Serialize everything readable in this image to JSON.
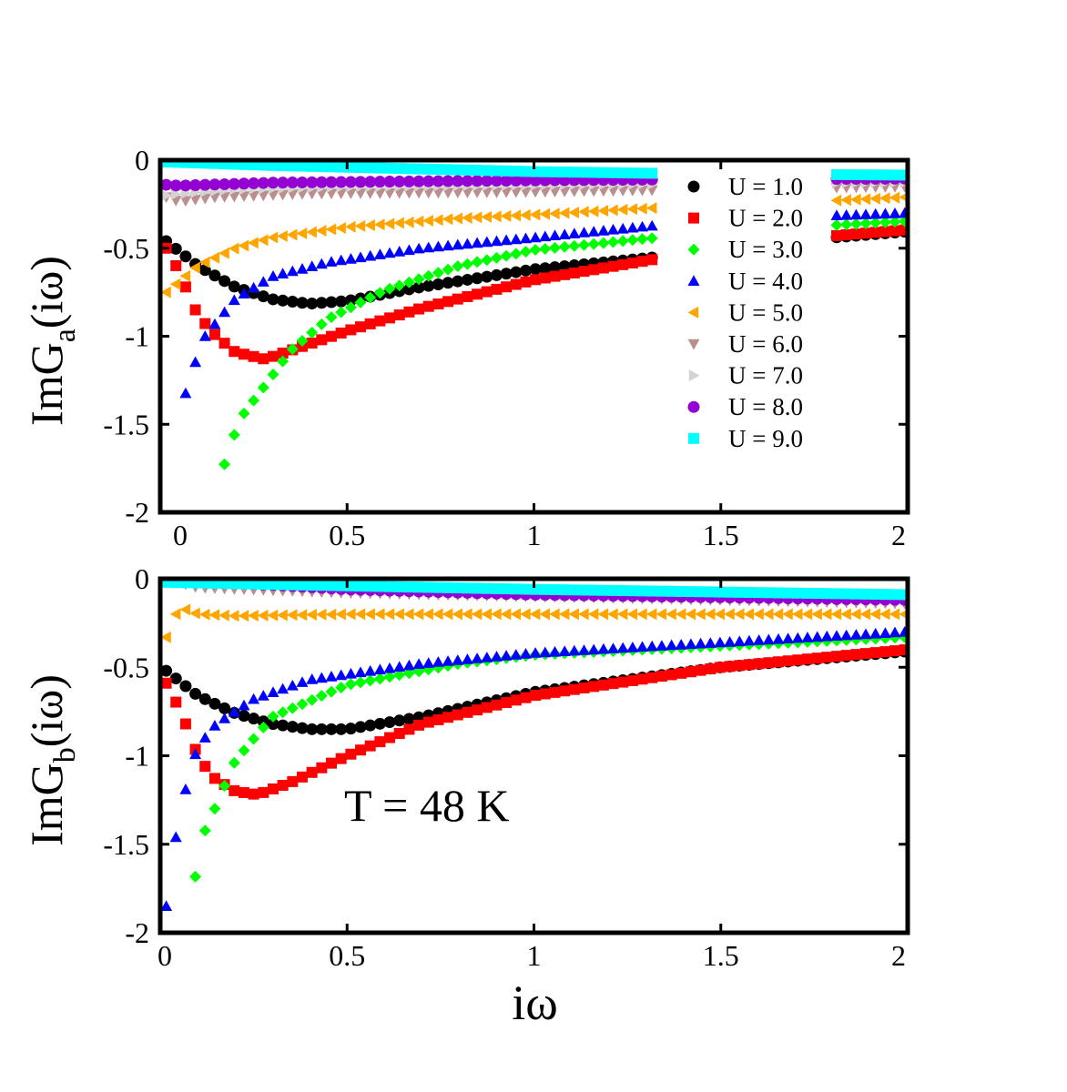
{
  "chart_data": [
    {
      "type": "scatter",
      "ylabel_main": "ImG",
      "ylabel_sub": "a",
      "ylabel_tail": "(iω)",
      "xlim": [
        0,
        2
      ],
      "ylim": [
        -2,
        0
      ],
      "xticks": [
        0,
        0.5,
        1,
        1.5,
        2
      ],
      "xticklabels": [
        "0",
        "0.5",
        "1",
        "1.5",
        "2"
      ],
      "yticks": [
        0,
        -0.5,
        -1,
        -1.5,
        -2
      ],
      "yticklabels": [
        "0",
        "-0.5",
        "-1",
        "-1.5",
        "-2"
      ],
      "legend_position": "top-right",
      "legend_title_prefix": "U = ",
      "series": [
        {
          "name": "U = 1.0",
          "u": "1.0",
          "color": "#000000",
          "marker": "circle",
          "anchors": [
            [
              0.016,
              -0.46
            ],
            [
              0.1,
              -0.6
            ],
            [
              0.2,
              -0.72
            ],
            [
              0.3,
              -0.79
            ],
            [
              0.4,
              -0.815
            ],
            [
              0.5,
              -0.8
            ],
            [
              0.7,
              -0.72
            ],
            [
              1.0,
              -0.62
            ],
            [
              1.33,
              -0.55
            ],
            [
              1.8,
              -0.44
            ],
            [
              2.0,
              -0.405
            ]
          ]
        },
        {
          "name": "U = 2.0",
          "u": "2.0",
          "color": "#ff0000",
          "marker": "square",
          "anchors": [
            [
              0.016,
              -0.5
            ],
            [
              0.05,
              -0.63
            ],
            [
              0.1,
              -0.88
            ],
            [
              0.15,
              -1.0
            ],
            [
              0.2,
              -1.09
            ],
            [
              0.28,
              -1.13
            ],
            [
              0.35,
              -1.08
            ],
            [
              0.5,
              -0.97
            ],
            [
              0.7,
              -0.84
            ],
            [
              1.0,
              -0.68
            ],
            [
              1.33,
              -0.56
            ],
            [
              1.8,
              -0.43
            ],
            [
              2.0,
              -0.395
            ]
          ]
        },
        {
          "name": "U = 3.0",
          "u": "3.0",
          "color": "#00ff00",
          "marker": "diamond",
          "anchors": [
            [
              0.15,
              -1.94
            ],
            [
              0.18,
              -1.65
            ],
            [
              0.22,
              -1.45
            ],
            [
              0.28,
              -1.28
            ],
            [
              0.35,
              -1.08
            ],
            [
              0.45,
              -0.9
            ],
            [
              0.6,
              -0.74
            ],
            [
              0.8,
              -0.6
            ],
            [
              1.0,
              -0.51
            ],
            [
              1.33,
              -0.44
            ],
            [
              1.8,
              -0.37
            ],
            [
              2.0,
              -0.345
            ]
          ]
        },
        {
          "name": "U = 4.0",
          "u": "4.0",
          "color": "#0000ff",
          "marker": "triangle-up",
          "anchors": [
            [
              0.05,
              -1.45
            ],
            [
              0.09,
              -1.17
            ],
            [
              0.12,
              -1.0
            ],
            [
              0.2,
              -0.79
            ],
            [
              0.3,
              -0.66
            ],
            [
              0.45,
              -0.58
            ],
            [
              0.7,
              -0.5
            ],
            [
              1.0,
              -0.44
            ],
            [
              1.33,
              -0.37
            ],
            [
              1.8,
              -0.315
            ],
            [
              2.0,
              -0.3
            ]
          ]
        },
        {
          "name": "U = 5.0",
          "u": "5.0",
          "color": "#ffa500",
          "marker": "triangle-left",
          "anchors": [
            [
              0.016,
              -0.75
            ],
            [
              0.05,
              -0.69
            ],
            [
              0.1,
              -0.6
            ],
            [
              0.2,
              -0.5
            ],
            [
              0.3,
              -0.44
            ],
            [
              0.5,
              -0.38
            ],
            [
              0.8,
              -0.33
            ],
            [
              1.0,
              -0.31
            ],
            [
              1.33,
              -0.27
            ],
            [
              1.8,
              -0.23
            ],
            [
              2.0,
              -0.21
            ]
          ]
        },
        {
          "name": "U = 6.0",
          "u": "6.0",
          "color": "#bc8f8f",
          "marker": "triangle-down",
          "anchors": [
            [
              0.016,
              -0.21
            ],
            [
              0.05,
              -0.235
            ],
            [
              0.15,
              -0.21
            ],
            [
              0.4,
              -0.19
            ],
            [
              1.0,
              -0.18
            ],
            [
              1.33,
              -0.17
            ],
            [
              2.0,
              -0.15
            ]
          ]
        },
        {
          "name": "U = 7.0",
          "u": "7.0",
          "color": "#d3d3d3",
          "marker": "triangle-right",
          "anchors": [
            [
              0.016,
              -0.2
            ],
            [
              0.05,
              -0.19
            ],
            [
              0.2,
              -0.165
            ],
            [
              0.5,
              -0.15
            ],
            [
              1.0,
              -0.14
            ],
            [
              1.33,
              -0.135
            ],
            [
              2.0,
              -0.125
            ]
          ]
        },
        {
          "name": "U = 8.0",
          "u": "8.0",
          "color": "#9400d3",
          "marker": "circle",
          "anchors": [
            [
              0.016,
              -0.14
            ],
            [
              0.05,
              -0.145
            ],
            [
              0.3,
              -0.128
            ],
            [
              0.7,
              -0.12
            ],
            [
              1.0,
              -0.115
            ],
            [
              1.33,
              -0.11
            ],
            [
              2.0,
              -0.105
            ]
          ]
        },
        {
          "name": "U = 9.0",
          "u": "9.0",
          "color": "#00ffff",
          "marker": "square",
          "anchors": [
            [
              0.016,
              -0.01
            ],
            [
              0.3,
              -0.03
            ],
            [
              0.7,
              -0.05
            ],
            [
              1.0,
              -0.065
            ],
            [
              1.33,
              -0.075
            ],
            [
              2.0,
              -0.085
            ]
          ]
        }
      ]
    },
    {
      "type": "scatter",
      "ylabel_main": "ImG",
      "ylabel_sub": "b",
      "ylabel_tail": "(iω)",
      "xlabel": "iω",
      "annotation": "T = 48 K",
      "xlim": [
        0,
        2
      ],
      "ylim": [
        -2,
        0
      ],
      "xticks": [
        0,
        0.5,
        1,
        1.5,
        2
      ],
      "xticklabels": [
        "0",
        "0.5",
        "1",
        "1.5",
        "2"
      ],
      "yticks": [
        0,
        -0.5,
        -1,
        -1.5,
        -2
      ],
      "yticklabels": [
        "0",
        "-0.5",
        "-1",
        "-1.5",
        "-2"
      ],
      "series": [
        {
          "name": "U = 1.0",
          "color": "#000000",
          "marker": "circle",
          "anchors": [
            [
              0.016,
              -0.52
            ],
            [
              0.1,
              -0.66
            ],
            [
              0.2,
              -0.76
            ],
            [
              0.3,
              -0.82
            ],
            [
              0.4,
              -0.85
            ],
            [
              0.5,
              -0.85
            ],
            [
              0.7,
              -0.78
            ],
            [
              1.0,
              -0.64
            ],
            [
              1.5,
              -0.5
            ],
            [
              2.0,
              -0.41
            ]
          ]
        },
        {
          "name": "U = 2.0",
          "color": "#ff0000",
          "marker": "square",
          "anchors": [
            [
              0.016,
              -0.59
            ],
            [
              0.05,
              -0.73
            ],
            [
              0.08,
              -0.88
            ],
            [
              0.1,
              -1.0
            ],
            [
              0.14,
              -1.12
            ],
            [
              0.2,
              -1.2
            ],
            [
              0.26,
              -1.22
            ],
            [
              0.35,
              -1.15
            ],
            [
              0.5,
              -1.0
            ],
            [
              0.7,
              -0.82
            ],
            [
              1.0,
              -0.66
            ],
            [
              1.5,
              -0.5
            ],
            [
              2.0,
              -0.4
            ]
          ]
        },
        {
          "name": "U = 3.0",
          "color": "#00ff00",
          "marker": "diamond",
          "anchors": [
            [
              0.08,
              -1.87
            ],
            [
              0.11,
              -1.47
            ],
            [
              0.15,
              -1.28
            ],
            [
              0.2,
              -1.03
            ],
            [
              0.3,
              -0.78
            ],
            [
              0.5,
              -0.6
            ],
            [
              0.8,
              -0.48
            ],
            [
              1.0,
              -0.43
            ],
            [
              1.5,
              -0.38
            ],
            [
              2.0,
              -0.33
            ]
          ]
        },
        {
          "name": "U = 4.0",
          "color": "#0000ff",
          "marker": "triangle-up",
          "anchors": [
            [
              0.016,
              -1.85
            ],
            [
              0.05,
              -1.34
            ],
            [
              0.08,
              -1.09
            ],
            [
              0.1,
              -0.95
            ],
            [
              0.15,
              -0.82
            ],
            [
              0.25,
              -0.68
            ],
            [
              0.4,
              -0.57
            ],
            [
              0.7,
              -0.48
            ],
            [
              1.0,
              -0.42
            ],
            [
              1.5,
              -0.36
            ],
            [
              2.0,
              -0.3
            ]
          ]
        },
        {
          "name": "U = 5.0",
          "color": "#ffa500",
          "marker": "triangle-left",
          "anchors": [
            [
              0.016,
              -0.33
            ],
            [
              0.05,
              -0.16
            ],
            [
              0.1,
              -0.2
            ],
            [
              0.2,
              -0.21
            ],
            [
              0.5,
              -0.2
            ],
            [
              1.0,
              -0.2
            ],
            [
              1.5,
              -0.2
            ],
            [
              2.0,
              -0.2
            ]
          ]
        },
        {
          "name": "U = 6.0",
          "color": "#bc8f8f",
          "marker": "triangle-down",
          "anchors": [
            [
              0.016,
              -0.0
            ],
            [
              0.1,
              -0.05
            ],
            [
              0.5,
              -0.08
            ],
            [
              1.0,
              -0.1
            ],
            [
              1.5,
              -0.12
            ],
            [
              2.0,
              -0.14
            ]
          ]
        },
        {
          "name": "U = 7.0",
          "color": "#d3d3d3",
          "marker": "triangle-right",
          "anchors": [
            [
              0.016,
              -0.0
            ],
            [
              0.5,
              -0.04
            ],
            [
              1.0,
              -0.08
            ],
            [
              2.0,
              -0.1
            ]
          ]
        },
        {
          "name": "U = 8.0",
          "color": "#9400d3",
          "marker": "circle",
          "anchors": [
            [
              0.016,
              -0.0
            ],
            [
              0.5,
              -0.06
            ],
            [
              1.0,
              -0.09
            ],
            [
              2.0,
              -0.12
            ]
          ]
        },
        {
          "name": "U = 9.0",
          "color": "#00ffff",
          "marker": "square",
          "anchors": [
            [
              0.016,
              -0.02
            ],
            [
              0.5,
              -0.04
            ],
            [
              1.0,
              -0.06
            ],
            [
              2.0,
              -0.09
            ]
          ]
        }
      ]
    }
  ]
}
